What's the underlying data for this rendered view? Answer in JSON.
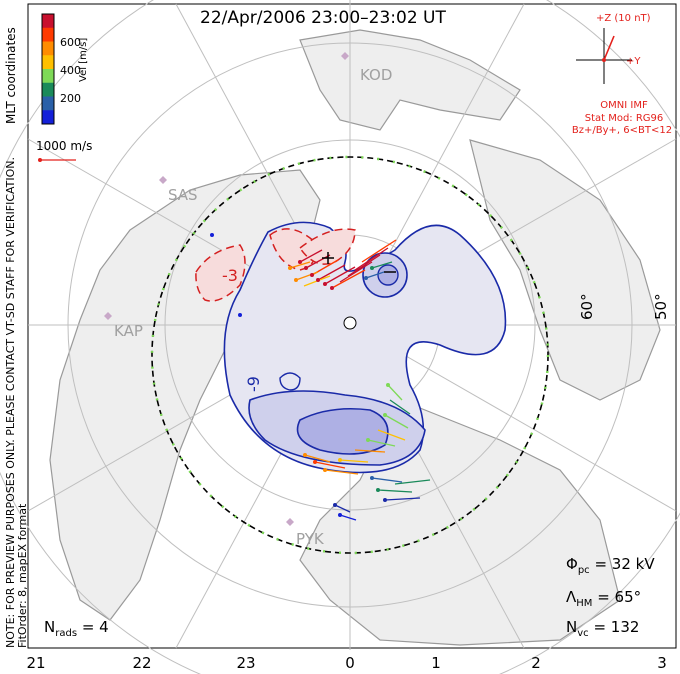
{
  "title": "22/Apr/2006 23:00–23:02 UT",
  "color_scale": {
    "label": "Vel [m/s]",
    "ticks": [
      "600",
      "400",
      "200"
    ],
    "colors": [
      "#c8102e",
      "#ff3a00",
      "#ff8c00",
      "#ffc000",
      "#7ed957",
      "#1a8a5a",
      "#2a60a8",
      "#1420d8"
    ]
  },
  "reference_vector": {
    "label": "1000 m/s",
    "color": "#e3211c"
  },
  "imf": {
    "z_label": "+Z (10 nT)",
    "y_label": "+Y",
    "source": "OMNI IMF",
    "model": "Stat Mod: RG96",
    "condition": "Bz+/By+, 6<BT<12",
    "color": "#e3211c"
  },
  "side_text": {
    "coordinates": "MLT coordinates",
    "notice": "NOTE: FOR PREVIEW PURPOSES ONLY. PLEASE CONTACT VT-SD STAFF FOR VERIFICATION.",
    "fit": "FitOrder: 8, mapEX format"
  },
  "stations": [
    "KOD",
    "SAS",
    "KAP",
    "PYK"
  ],
  "latitude_labels": [
    "60°",
    "50°"
  ],
  "contour_labels": [
    "-3",
    "-9"
  ],
  "mlt_axis": [
    "21",
    "22",
    "23",
    "0",
    "1",
    "2",
    "3"
  ],
  "stats": {
    "phi_symbol": "Φ",
    "phi_sub": "pc",
    "phi_value": "= 32 kV",
    "lambda_symbol": "Λ",
    "lambda_sub": "HM",
    "lambda_value": "= 65°",
    "nvc_symbol": "N",
    "nvc_sub": "vc",
    "nvc_value": "= 132",
    "nrads_symbol": "N",
    "nrads_sub": "rads",
    "nrads_value": "= 4"
  }
}
